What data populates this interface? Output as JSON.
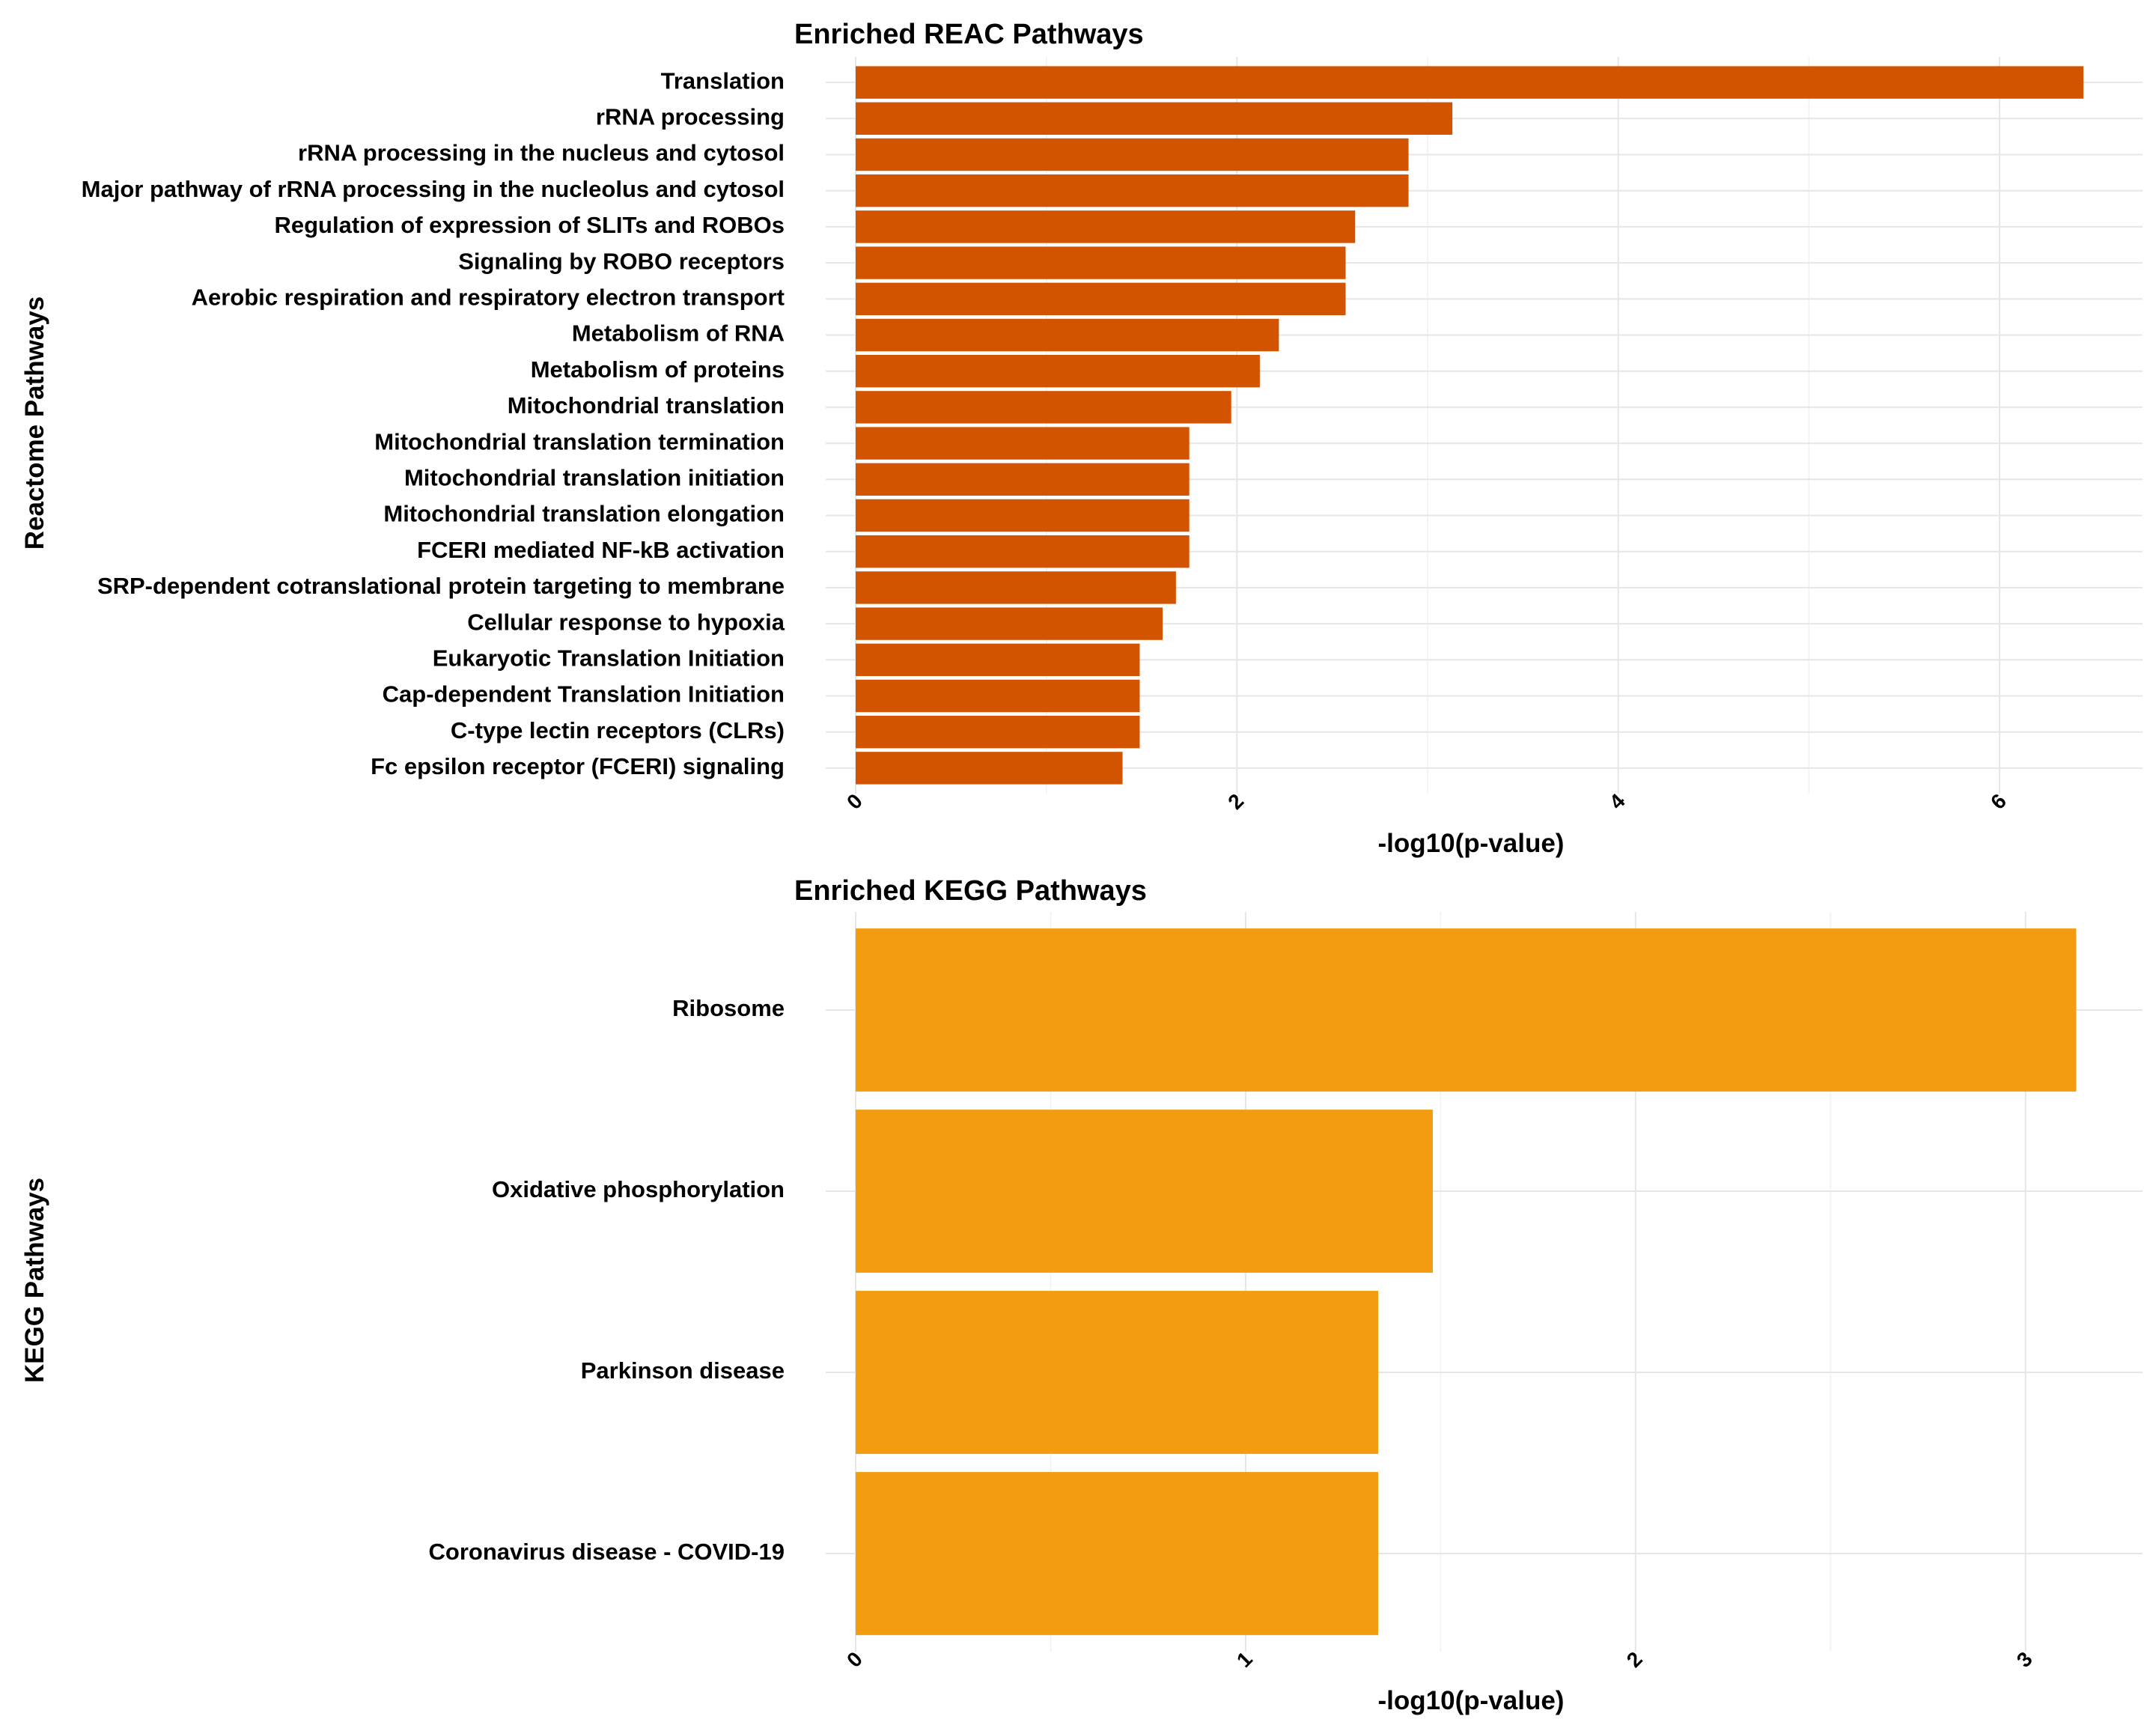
{
  "chart_data": [
    {
      "type": "bar",
      "orientation": "horizontal",
      "title": "Enriched REAC Pathways",
      "xlabel": "-log10(p-value)",
      "ylabel": "Reactome Pathways",
      "xlim": [
        0,
        6.75
      ],
      "xticks": [
        0,
        2,
        4,
        6
      ],
      "grid": true,
      "color": "#D35400",
      "categories": [
        "Translation",
        "rRNA processing",
        "rRNA processing in the nucleus and cytosol",
        "Major pathway of rRNA processing in the nucleolus and cytosol",
        "Regulation of expression of SLITs and ROBOs",
        "Signaling by ROBO receptors",
        "Aerobic respiration and respiratory electron transport",
        "Metabolism of RNA",
        "Metabolism of proteins",
        "Mitochondrial translation",
        "Mitochondrial translation termination",
        "Mitochondrial translation initiation",
        "Mitochondrial translation elongation",
        "FCERI mediated NF-kB activation",
        "SRP-dependent cotranslational protein targeting to membrane",
        "Cellular response to hypoxia",
        "Eukaryotic Translation Initiation",
        "Cap-dependent Translation Initiation",
        "C-type lectin receptors (CLRs)",
        "Fc epsilon receptor (FCERI) signaling"
      ],
      "values": [
        6.44,
        3.13,
        2.9,
        2.9,
        2.62,
        2.57,
        2.57,
        2.22,
        2.12,
        1.97,
        1.75,
        1.75,
        1.75,
        1.75,
        1.68,
        1.61,
        1.49,
        1.49,
        1.49,
        1.4
      ]
    },
    {
      "type": "bar",
      "orientation": "horizontal",
      "title": "Enriched KEGG Pathways",
      "xlabel": "-log10(p-value)",
      "ylabel": "KEGG Pathways",
      "xlim": [
        0,
        3.3
      ],
      "xticks": [
        0,
        1,
        2,
        3
      ],
      "grid": true,
      "color": "#F39C12",
      "categories": [
        "Ribosome",
        "Oxidative phosphorylation",
        "Parkinson disease",
        "Coronavirus disease - COVID-19"
      ],
      "values": [
        3.13,
        1.48,
        1.34,
        1.34
      ]
    }
  ]
}
